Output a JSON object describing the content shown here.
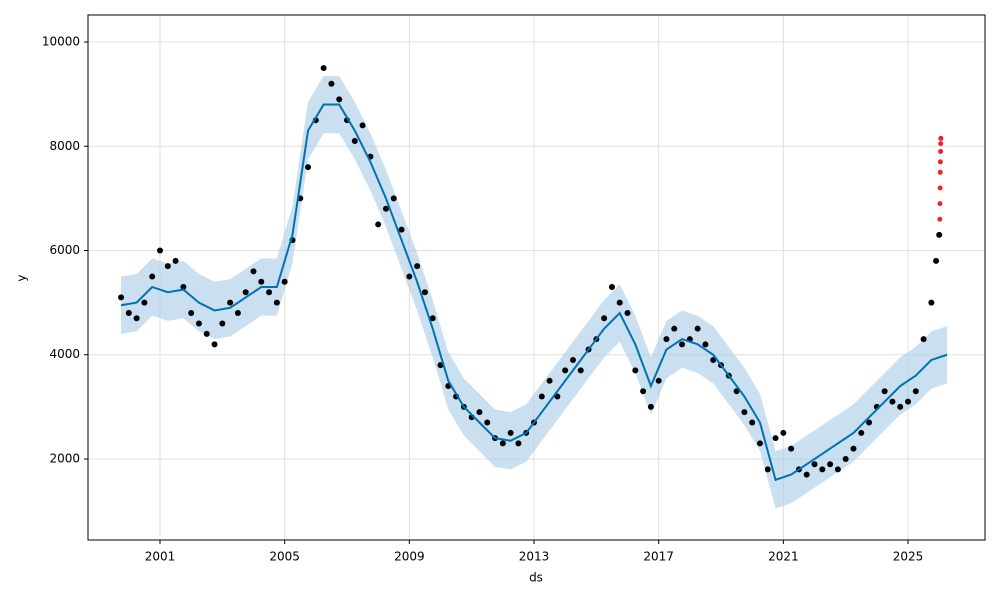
{
  "chart_data": {
    "type": "forecast",
    "x_label": "ds",
    "y_label": "y",
    "xlim": [
      1998.69,
      2027.47
    ],
    "ylim": [
      446,
      10518
    ],
    "xticks": [
      2001,
      2005,
      2009,
      2013,
      2017,
      2021,
      2025
    ],
    "yticks": [
      2000,
      4000,
      6000,
      8000,
      10000
    ],
    "grid": true,
    "observed": {
      "color": "#000000",
      "x": [
        1999.75,
        2000.0,
        2000.25,
        2000.5,
        2000.75,
        2001.0,
        2001.25,
        2001.5,
        2001.75,
        2002.0,
        2002.25,
        2002.5,
        2002.75,
        2003.0,
        2003.25,
        2003.5,
        2003.75,
        2004.0,
        2004.25,
        2004.5,
        2004.75,
        2005.0,
        2005.25,
        2005.5,
        2005.75,
        2006.0,
        2006.25,
        2006.5,
        2006.75,
        2007.0,
        2007.25,
        2007.5,
        2007.75,
        2008.0,
        2008.25,
        2008.5,
        2008.75,
        2009.0,
        2009.25,
        2009.5,
        2009.75,
        2010.0,
        2010.25,
        2010.5,
        2010.75,
        2011.0,
        2011.25,
        2011.5,
        2011.75,
        2012.0,
        2012.25,
        2012.5,
        2012.75,
        2013.0,
        2013.25,
        2013.5,
        2013.75,
        2014.0,
        2014.25,
        2014.5,
        2014.75,
        2015.0,
        2015.25,
        2015.5,
        2015.75,
        2016.0,
        2016.25,
        2016.5,
        2016.75,
        2017.0,
        2017.25,
        2017.5,
        2017.75,
        2018.0,
        2018.25,
        2018.5,
        2018.75,
        2019.0,
        2019.25,
        2019.5,
        2019.75,
        2020.0,
        2020.25,
        2020.5,
        2020.75,
        2021.0,
        2021.25,
        2021.5,
        2021.75,
        2022.0,
        2022.25,
        2022.5,
        2022.75,
        2023.0,
        2023.25,
        2023.5,
        2023.75,
        2024.0,
        2024.25,
        2024.5,
        2024.75,
        2025.0,
        2025.25,
        2025.5,
        2025.75,
        2025.9,
        2026.0
      ],
      "values": [
        5100,
        4800,
        4700,
        5000,
        5500,
        6000,
        5700,
        5800,
        5300,
        4800,
        4600,
        4400,
        4200,
        4600,
        5000,
        4800,
        5200,
        5600,
        5400,
        5200,
        5000,
        5400,
        6200,
        7000,
        7600,
        8500,
        9500,
        9200,
        8900,
        8500,
        8100,
        8400,
        7800,
        6500,
        6800,
        7000,
        6400,
        5500,
        5700,
        5200,
        4700,
        3800,
        3400,
        3200,
        3000,
        2800,
        2900,
        2700,
        2400,
        2300,
        2500,
        2300,
        2500,
        2700,
        3200,
        3500,
        3200,
        3700,
        3900,
        3700,
        4100,
        4300,
        4700,
        5300,
        5000,
        4800,
        3700,
        3300,
        3000,
        3500,
        4300,
        4500,
        4200,
        4300,
        4500,
        4200,
        3900,
        3800,
        3600,
        3300,
        2900,
        2700,
        2300,
        1800,
        2400,
        2500,
        2200,
        1800,
        1700,
        1900,
        1800,
        1900,
        1800,
        2000,
        2200,
        2500,
        2700,
        3000,
        3300,
        3100,
        3000,
        3100,
        3300,
        4300,
        5000,
        5800,
        6300
      ]
    },
    "future": {
      "color": "#e8262b",
      "x": [
        2026.02,
        2026.025,
        2026.03,
        2026.035,
        2026.04,
        2026.045,
        2026.05,
        2026.055
      ],
      "values": [
        6600,
        6900,
        7200,
        7500,
        7700,
        7900,
        8050,
        8150
      ]
    },
    "forecast": {
      "color": "#0072b2",
      "band_color": "#a6cce6",
      "x": [
        1999.75,
        2000.25,
        2000.75,
        2001.25,
        2001.75,
        2002.25,
        2002.75,
        2003.25,
        2003.75,
        2004.25,
        2004.75,
        2005.25,
        2005.75,
        2006.25,
        2006.75,
        2007.25,
        2007.75,
        2008.25,
        2008.75,
        2009.25,
        2009.75,
        2010.25,
        2010.75,
        2011.25,
        2011.75,
        2012.25,
        2012.75,
        2013.25,
        2013.75,
        2014.25,
        2014.75,
        2015.25,
        2015.75,
        2016.25,
        2016.75,
        2017.25,
        2017.75,
        2018.25,
        2018.75,
        2019.25,
        2019.75,
        2020.25,
        2020.75,
        2021.25,
        2021.75,
        2022.25,
        2022.75,
        2023.25,
        2023.75,
        2024.25,
        2024.75,
        2025.25,
        2025.75,
        2026.25
      ],
      "values": [
        4950,
        5000,
        5300,
        5200,
        5250,
        5000,
        4850,
        4900,
        5100,
        5300,
        5300,
        6300,
        8300,
        8800,
        8800,
        8300,
        7700,
        7000,
        6200,
        5400,
        4500,
        3500,
        3000,
        2700,
        2400,
        2350,
        2500,
        2900,
        3300,
        3700,
        4100,
        4500,
        4800,
        4200,
        3400,
        4100,
        4300,
        4200,
        4000,
        3600,
        3200,
        2700,
        1600,
        1700,
        1900,
        2100,
        2300,
        2500,
        2800,
        3100,
        3400,
        3600,
        3900,
        4000
      ],
      "lower": [
        4400,
        4450,
        4750,
        4650,
        4700,
        4450,
        4300,
        4350,
        4550,
        4750,
        4750,
        5750,
        7750,
        8250,
        8250,
        7750,
        7150,
        6450,
        5650,
        4850,
        3950,
        2950,
        2450,
        2150,
        1850,
        1800,
        1950,
        2350,
        2750,
        3150,
        3550,
        3950,
        4250,
        3650,
        2850,
        3550,
        3750,
        3650,
        3450,
        3050,
        2650,
        2150,
        1050,
        1150,
        1350,
        1550,
        1750,
        1950,
        2250,
        2550,
        2850,
        3050,
        3350,
        3450
      ],
      "upper": [
        5500,
        5550,
        5850,
        5750,
        5800,
        5550,
        5400,
        5450,
        5650,
        5850,
        5850,
        6850,
        8850,
        9350,
        9350,
        8850,
        8250,
        7550,
        6750,
        5950,
        5050,
        4050,
        3550,
        3250,
        2950,
        2900,
        3050,
        3450,
        3850,
        4250,
        4650,
        5050,
        5350,
        4750,
        3950,
        4650,
        4850,
        4750,
        4550,
        4150,
        3750,
        3250,
        2150,
        2250,
        2450,
        2650,
        2850,
        3050,
        3350,
        3650,
        3950,
        4150,
        4450,
        4550
      ]
    }
  }
}
